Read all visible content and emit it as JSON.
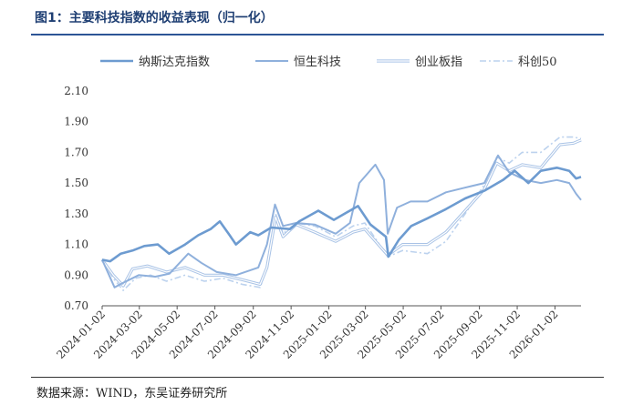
{
  "figure": {
    "title": "图1：主要科技指数的收益表现（归一化）",
    "source": "数据来源：WIND，东吴证券研究所"
  },
  "chart_data": {
    "type": "line",
    "ylim": [
      0.7,
      2.1
    ],
    "yticks": [
      "2.10",
      "1.90",
      "1.70",
      "1.50",
      "1.30",
      "1.10",
      "0.90",
      "0.70"
    ],
    "xticks": [
      "2024-01-02",
      "2024-03-02",
      "2024-05-02",
      "2024-07-02",
      "2024-09-02",
      "2024-11-02",
      "2025-01-02",
      "2025-03-02",
      "2025-05-02",
      "2025-07-02",
      "2025-09-02",
      "2025-11-02",
      "2026-01-02"
    ],
    "x_range": [
      "2024-01-02",
      "2026-02-13"
    ],
    "grid": false,
    "legend_position": "top",
    "series": [
      {
        "name": "纳斯达克指数",
        "color": "#6d9bd0",
        "style": "solid-thick",
        "points": [
          [
            "2024-01-02",
            1.0
          ],
          [
            "2024-01-15",
            0.99
          ],
          [
            "2024-02-01",
            1.04
          ],
          [
            "2024-02-20",
            1.06
          ],
          [
            "2024-03-10",
            1.09
          ],
          [
            "2024-04-01",
            1.1
          ],
          [
            "2024-04-19",
            1.04
          ],
          [
            "2024-05-15",
            1.1
          ],
          [
            "2024-06-05",
            1.16
          ],
          [
            "2024-06-25",
            1.2
          ],
          [
            "2024-07-10",
            1.25
          ],
          [
            "2024-07-24",
            1.17
          ],
          [
            "2024-08-05",
            1.1
          ],
          [
            "2024-08-28",
            1.18
          ],
          [
            "2024-09-10",
            1.16
          ],
          [
            "2024-10-01",
            1.21
          ],
          [
            "2024-10-31",
            1.2
          ],
          [
            "2024-11-15",
            1.25
          ],
          [
            "2024-12-16",
            1.32
          ],
          [
            "2025-01-10",
            1.26
          ],
          [
            "2025-02-18",
            1.35
          ],
          [
            "2025-03-10",
            1.23
          ],
          [
            "2025-04-04",
            1.15
          ],
          [
            "2025-04-08",
            1.02
          ],
          [
            "2025-04-25",
            1.13
          ],
          [
            "2025-05-15",
            1.22
          ],
          [
            "2025-06-10",
            1.27
          ],
          [
            "2025-07-10",
            1.33
          ],
          [
            "2025-08-10",
            1.4
          ],
          [
            "2025-09-10",
            1.45
          ],
          [
            "2025-10-10",
            1.52
          ],
          [
            "2025-10-29",
            1.58
          ],
          [
            "2025-11-20",
            1.5
          ],
          [
            "2025-12-10",
            1.58
          ],
          [
            "2026-01-05",
            1.6
          ],
          [
            "2026-01-25",
            1.58
          ],
          [
            "2026-02-05",
            1.53
          ],
          [
            "2026-02-13",
            1.54
          ]
        ]
      },
      {
        "name": "恒生科技",
        "color": "#8fb0dc",
        "style": "solid-medium",
        "points": [
          [
            "2024-01-02",
            1.0
          ],
          [
            "2024-01-22",
            0.82
          ],
          [
            "2024-02-05",
            0.85
          ],
          [
            "2024-03-01",
            0.9
          ],
          [
            "2024-03-28",
            0.89
          ],
          [
            "2024-04-20",
            0.91
          ],
          [
            "2024-05-20",
            1.04
          ],
          [
            "2024-06-10",
            0.98
          ],
          [
            "2024-07-05",
            0.92
          ],
          [
            "2024-08-05",
            0.9
          ],
          [
            "2024-09-10",
            0.95
          ],
          [
            "2024-09-24",
            1.1
          ],
          [
            "2024-10-07",
            1.36
          ],
          [
            "2024-10-20",
            1.22
          ],
          [
            "2024-11-10",
            1.24
          ],
          [
            "2024-12-10",
            1.23
          ],
          [
            "2025-01-13",
            1.17
          ],
          [
            "2025-02-05",
            1.24
          ],
          [
            "2025-02-20",
            1.5
          ],
          [
            "2025-03-18",
            1.62
          ],
          [
            "2025-04-01",
            1.52
          ],
          [
            "2025-04-07",
            1.17
          ],
          [
            "2025-04-22",
            1.34
          ],
          [
            "2025-05-14",
            1.38
          ],
          [
            "2025-06-10",
            1.38
          ],
          [
            "2025-07-10",
            1.44
          ],
          [
            "2025-08-20",
            1.48
          ],
          [
            "2025-09-10",
            1.5
          ],
          [
            "2025-10-02",
            1.68
          ],
          [
            "2025-10-20",
            1.57
          ],
          [
            "2025-11-15",
            1.52
          ],
          [
            "2025-12-10",
            1.5
          ],
          [
            "2026-01-05",
            1.52
          ],
          [
            "2026-01-25",
            1.5
          ],
          [
            "2026-02-05",
            1.43
          ],
          [
            "2026-02-13",
            1.39
          ]
        ]
      },
      {
        "name": "创业板指",
        "color": "#a9c3e6",
        "style": "double",
        "points": [
          [
            "2024-01-02",
            1.0
          ],
          [
            "2024-01-20",
            0.9
          ],
          [
            "2024-02-05",
            0.83
          ],
          [
            "2024-02-20",
            0.94
          ],
          [
            "2024-03-15",
            0.96
          ],
          [
            "2024-04-15",
            0.92
          ],
          [
            "2024-05-15",
            0.95
          ],
          [
            "2024-06-15",
            0.9
          ],
          [
            "2024-07-15",
            0.9
          ],
          [
            "2024-08-15",
            0.87
          ],
          [
            "2024-09-13",
            0.84
          ],
          [
            "2024-09-24",
            0.95
          ],
          [
            "2024-10-08",
            1.28
          ],
          [
            "2024-10-20",
            1.15
          ],
          [
            "2024-11-10",
            1.23
          ],
          [
            "2024-12-10",
            1.18
          ],
          [
            "2025-01-13",
            1.12
          ],
          [
            "2025-02-10",
            1.18
          ],
          [
            "2025-03-01",
            1.2
          ],
          [
            "2025-04-07",
            1.03
          ],
          [
            "2025-05-01",
            1.1
          ],
          [
            "2025-06-10",
            1.1
          ],
          [
            "2025-07-10",
            1.18
          ],
          [
            "2025-08-10",
            1.32
          ],
          [
            "2025-09-10",
            1.46
          ],
          [
            "2025-09-30",
            1.63
          ],
          [
            "2025-10-20",
            1.58
          ],
          [
            "2025-11-10",
            1.62
          ],
          [
            "2025-12-10",
            1.6
          ],
          [
            "2026-01-10",
            1.75
          ],
          [
            "2026-02-01",
            1.76
          ],
          [
            "2026-02-13",
            1.78
          ]
        ]
      },
      {
        "name": "科创50",
        "color": "#bcd2ee",
        "style": "dashdot",
        "points": [
          [
            "2024-01-02",
            1.0
          ],
          [
            "2024-01-20",
            0.88
          ],
          [
            "2024-02-05",
            0.8
          ],
          [
            "2024-02-25",
            0.88
          ],
          [
            "2024-03-20",
            0.9
          ],
          [
            "2024-04-15",
            0.86
          ],
          [
            "2024-05-15",
            0.9
          ],
          [
            "2024-06-15",
            0.86
          ],
          [
            "2024-07-15",
            0.88
          ],
          [
            "2024-08-15",
            0.84
          ],
          [
            "2024-09-13",
            0.82
          ],
          [
            "2024-09-24",
            0.95
          ],
          [
            "2024-10-08",
            1.3
          ],
          [
            "2024-10-20",
            1.17
          ],
          [
            "2024-11-10",
            1.24
          ],
          [
            "2024-12-10",
            1.22
          ],
          [
            "2025-01-13",
            1.15
          ],
          [
            "2025-02-10",
            1.22
          ],
          [
            "2025-03-01",
            1.24
          ],
          [
            "2025-04-07",
            1.02
          ],
          [
            "2025-05-01",
            1.06
          ],
          [
            "2025-06-10",
            1.04
          ],
          [
            "2025-07-10",
            1.12
          ],
          [
            "2025-08-10",
            1.3
          ],
          [
            "2025-09-10",
            1.49
          ],
          [
            "2025-09-30",
            1.67
          ],
          [
            "2025-10-20",
            1.63
          ],
          [
            "2025-11-10",
            1.7
          ],
          [
            "2025-12-10",
            1.7
          ],
          [
            "2026-01-10",
            1.8
          ],
          [
            "2026-02-01",
            1.8
          ],
          [
            "2026-02-13",
            1.79
          ]
        ]
      }
    ]
  }
}
